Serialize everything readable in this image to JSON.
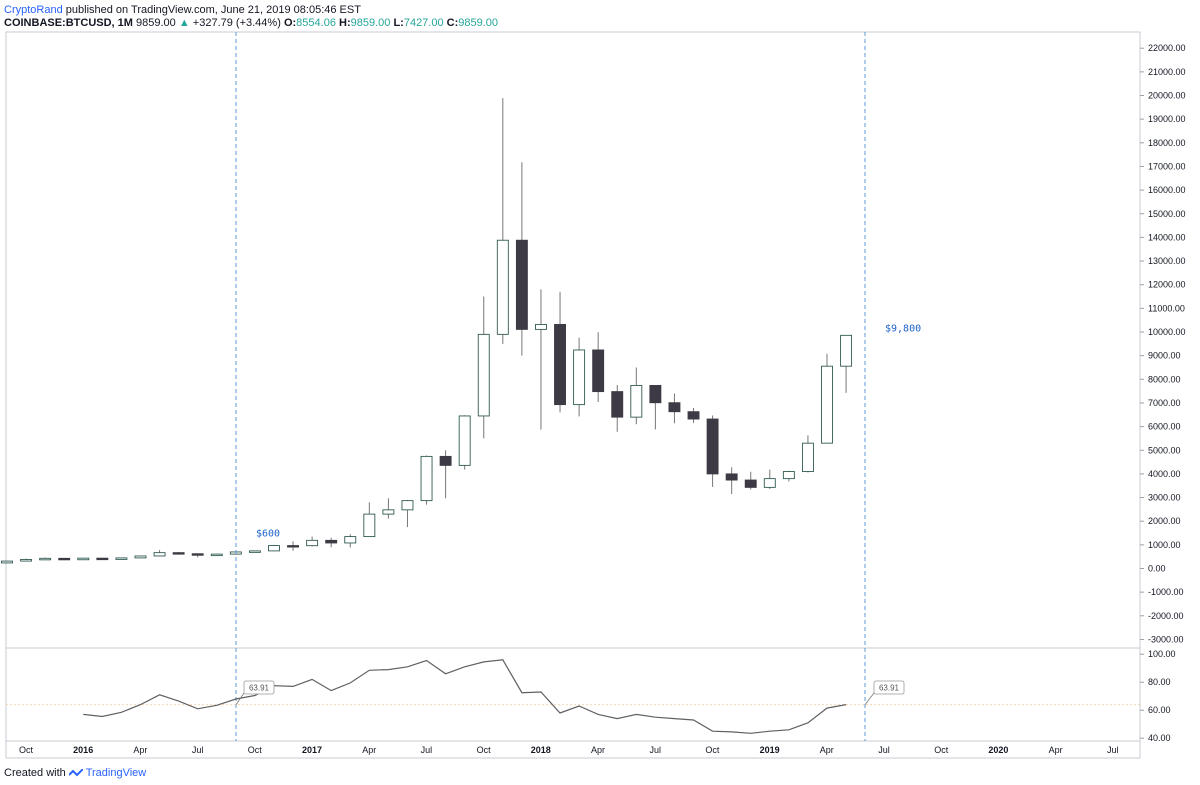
{
  "header": {
    "author": "CryptoRand",
    "published": "published on TradingView.com, June 21, 2019 08:05:46 EST",
    "symbol": "COINBASE:BTCUSD, 1M",
    "last": "9859.00",
    "change_arrow": "▲",
    "change": "+327.79 (+3.44%)",
    "o_label": "O:",
    "o_val": "8554.06",
    "h_label": "H:",
    "h_val": "9859.00",
    "l_label": "L:",
    "l_val": "7427.00",
    "c_label": "C:",
    "c_val": "9859.00"
  },
  "footer": {
    "created_with": "Created with",
    "brand": "TradingView"
  },
  "colors": {
    "bull_fill": "#ffffff",
    "bear_fill": "#3e3a45",
    "candle_stroke": "#315a53",
    "dashed": "#5b9bd5",
    "annotation": "#1e63c8",
    "rsi_line": "#606060"
  },
  "chart_data": [
    {
      "type": "candlestick",
      "title": "",
      "xlabel": "",
      "ylabel": "",
      "ylim": [
        -3500,
        22500
      ],
      "yticks": [
        "22000.00",
        "21000.00",
        "20000.00",
        "19000.00",
        "18000.00",
        "17000.00",
        "16000.00",
        "15000.00",
        "14000.00",
        "13000.00",
        "12000.00",
        "11000.00",
        "10000.00",
        "9000.00",
        "8000.00",
        "7000.00",
        "6000.00",
        "5000.00",
        "4000.00",
        "3000.00",
        "2000.00",
        "1000.00",
        "0.00",
        "-1000.00",
        "-2000.00",
        "-3000.00"
      ],
      "xticks": [
        {
          "label": "Oct",
          "bold": false
        },
        {
          "label": "2016",
          "bold": true
        },
        {
          "label": "Apr",
          "bold": false
        },
        {
          "label": "Jul",
          "bold": false
        },
        {
          "label": "Oct",
          "bold": false
        },
        {
          "label": "2017",
          "bold": true
        },
        {
          "label": "Apr",
          "bold": false
        },
        {
          "label": "Jul",
          "bold": false
        },
        {
          "label": "Oct",
          "bold": false
        },
        {
          "label": "2018",
          "bold": true
        },
        {
          "label": "Apr",
          "bold": false
        },
        {
          "label": "Jul",
          "bold": false
        },
        {
          "label": "Oct",
          "bold": false
        },
        {
          "label": "2019",
          "bold": true
        },
        {
          "label": "Apr",
          "bold": false
        },
        {
          "label": "Jul",
          "bold": false
        },
        {
          "label": "Oct",
          "bold": false
        },
        {
          "label": "2020",
          "bold": true
        },
        {
          "label": "Apr",
          "bold": false
        },
        {
          "label": "Jul",
          "bold": false
        }
      ],
      "candles": [
        {
          "o": 236,
          "h": 320,
          "l": 210,
          "c": 314
        },
        {
          "o": 314,
          "h": 420,
          "l": 300,
          "c": 380
        },
        {
          "o": 380,
          "h": 465,
          "l": 350,
          "c": 430
        },
        {
          "o": 430,
          "h": 440,
          "l": 355,
          "c": 370
        },
        {
          "o": 370,
          "h": 440,
          "l": 360,
          "c": 437
        },
        {
          "o": 437,
          "h": 440,
          "l": 385,
          "c": 415
        },
        {
          "o": 415,
          "h": 465,
          "l": 400,
          "c": 448
        },
        {
          "o": 448,
          "h": 535,
          "l": 440,
          "c": 530
        },
        {
          "o": 530,
          "h": 780,
          "l": 520,
          "c": 670
        },
        {
          "o": 670,
          "h": 700,
          "l": 620,
          "c": 624
        },
        {
          "o": 624,
          "h": 630,
          "l": 470,
          "c": 575
        },
        {
          "o": 575,
          "h": 620,
          "l": 550,
          "c": 608
        },
        {
          "o": 608,
          "h": 740,
          "l": 600,
          "c": 700
        },
        {
          "o": 700,
          "h": 750,
          "l": 690,
          "c": 745
        },
        {
          "o": 745,
          "h": 1000,
          "l": 735,
          "c": 970
        },
        {
          "o": 970,
          "h": 1150,
          "l": 750,
          "c": 965
        },
        {
          "o": 965,
          "h": 1350,
          "l": 930,
          "c": 1190
        },
        {
          "o": 1190,
          "h": 1300,
          "l": 900,
          "c": 1080
        },
        {
          "o": 1080,
          "h": 1450,
          "l": 890,
          "c": 1350
        },
        {
          "o": 1350,
          "h": 2800,
          "l": 1350,
          "c": 2300
        },
        {
          "o": 2300,
          "h": 2970,
          "l": 2110,
          "c": 2480
        },
        {
          "o": 2480,
          "h": 2900,
          "l": 1750,
          "c": 2870
        },
        {
          "o": 2870,
          "h": 4780,
          "l": 2700,
          "c": 4740
        },
        {
          "o": 4740,
          "h": 5000,
          "l": 2970,
          "c": 4360
        },
        {
          "o": 4360,
          "h": 6480,
          "l": 4180,
          "c": 6450
        },
        {
          "o": 6450,
          "h": 11500,
          "l": 5500,
          "c": 9900
        },
        {
          "o": 9900,
          "h": 19891,
          "l": 9500,
          "c": 13880
        },
        {
          "o": 13880,
          "h": 17180,
          "l": 9000,
          "c": 10110
        },
        {
          "o": 10110,
          "h": 11800,
          "l": 5870,
          "c": 10320
        },
        {
          "o": 10320,
          "h": 11700,
          "l": 6600,
          "c": 6930
        },
        {
          "o": 6930,
          "h": 9760,
          "l": 6430,
          "c": 9240
        },
        {
          "o": 9240,
          "h": 9990,
          "l": 7040,
          "c": 7480
        },
        {
          "o": 7480,
          "h": 7760,
          "l": 5780,
          "c": 6400
        },
        {
          "o": 6400,
          "h": 8500,
          "l": 6100,
          "c": 7740
        },
        {
          "o": 7740,
          "h": 7740,
          "l": 5880,
          "c": 7010
        },
        {
          "o": 7010,
          "h": 7400,
          "l": 6140,
          "c": 6630
        },
        {
          "o": 6630,
          "h": 6790,
          "l": 6150,
          "c": 6320
        },
        {
          "o": 6320,
          "h": 6470,
          "l": 3450,
          "c": 4000
        },
        {
          "o": 4000,
          "h": 4280,
          "l": 3150,
          "c": 3740
        },
        {
          "o": 3740,
          "h": 4090,
          "l": 3340,
          "c": 3430
        },
        {
          "o": 3430,
          "h": 4180,
          "l": 3360,
          "c": 3800
        },
        {
          "o": 3800,
          "h": 4130,
          "l": 3680,
          "c": 4100
        },
        {
          "o": 4100,
          "h": 5630,
          "l": 4060,
          "c": 5300
        },
        {
          "o": 5300,
          "h": 9080,
          "l": 5310,
          "c": 8554
        },
        {
          "o": 8554,
          "h": 9859,
          "l": 7427,
          "c": 9859
        }
      ],
      "annotations": [
        {
          "label": "$600",
          "value": 600
        },
        {
          "label": "$9,800",
          "value": 9800
        }
      ]
    },
    {
      "type": "line",
      "name": "",
      "ylim": [
        38,
        102
      ],
      "yticks": [
        "100.00",
        "80.00",
        "60.00",
        "40.00"
      ],
      "reference": 63.91,
      "values": [
        57,
        55.5,
        58.5,
        64,
        71,
        66.5,
        61,
        63.5,
        68,
        70.5,
        77.5,
        77,
        82,
        74,
        79.5,
        88.5,
        89,
        91,
        95.5,
        86,
        91,
        94.5,
        96,
        72.5,
        73,
        58,
        63,
        57,
        54,
        57,
        55,
        54,
        53,
        45,
        44.5,
        43.5,
        45,
        46,
        51,
        61.5,
        64
      ],
      "callouts": [
        {
          "label": "63.91"
        },
        {
          "label": "63.91"
        }
      ]
    }
  ]
}
